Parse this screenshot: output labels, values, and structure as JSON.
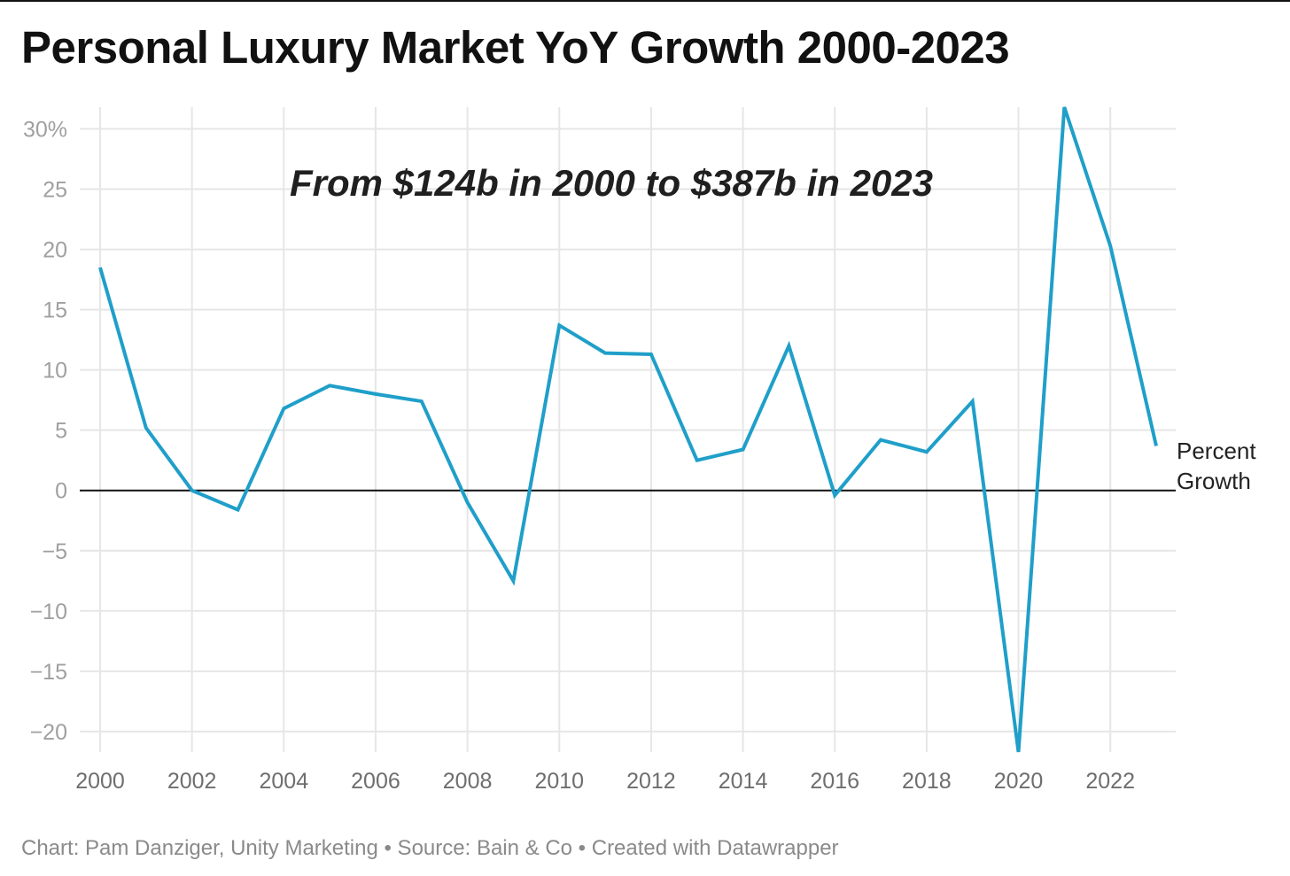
{
  "chart_data": {
    "type": "line",
    "title": "Personal Luxury Market YoY Growth 2000-2023",
    "annotation": "From $124b in 2000 to $387b in 2023",
    "xlabel": "",
    "ylabel": "",
    "x": [
      2000,
      2001,
      2002,
      2003,
      2004,
      2005,
      2006,
      2007,
      2008,
      2009,
      2010,
      2011,
      2012,
      2013,
      2014,
      2015,
      2016,
      2017,
      2018,
      2019,
      2020,
      2021,
      2022,
      2023
    ],
    "series": [
      {
        "name": "Percent Growth",
        "values": [
          18.5,
          5.2,
          0,
          -1.6,
          6.8,
          8.7,
          8.0,
          7.4,
          -1.0,
          -7.5,
          13.7,
          11.4,
          11.3,
          2.5,
          3.4,
          12.0,
          -0.4,
          4.2,
          3.2,
          7.4,
          -21.7,
          31.8,
          20.3,
          3.7
        ]
      }
    ],
    "xlim": [
      2000,
      2023
    ],
    "ylim": [
      -21.7,
      31.8
    ],
    "x_ticks": [
      2000,
      2002,
      2004,
      2006,
      2008,
      2010,
      2012,
      2014,
      2016,
      2018,
      2020,
      2022
    ],
    "x_tick_labels": [
      "2000",
      "2002",
      "2004",
      "2006",
      "2008",
      "2010",
      "2012",
      "2014",
      "2016",
      "2018",
      "2020",
      "2022"
    ],
    "y_ticks": [
      30,
      25,
      20,
      15,
      10,
      5,
      0,
      -5,
      -10,
      -15,
      -20
    ],
    "y_tick_labels": [
      "30%",
      "25",
      "20",
      "15",
      "10",
      "5",
      "0",
      "−5",
      "−10",
      "−15",
      "−20"
    ],
    "series_label_lines": [
      "Percent",
      "Growth"
    ],
    "grid": true,
    "zero_line": true,
    "legend": "none",
    "colors": {
      "line": "#1f9fc9",
      "grid": "#e6e6e6",
      "zero_line": "#111111"
    }
  },
  "footer": "Chart: Pam Danziger, Unity Marketing • Source: Bain & Co • Created with Datawrapper"
}
